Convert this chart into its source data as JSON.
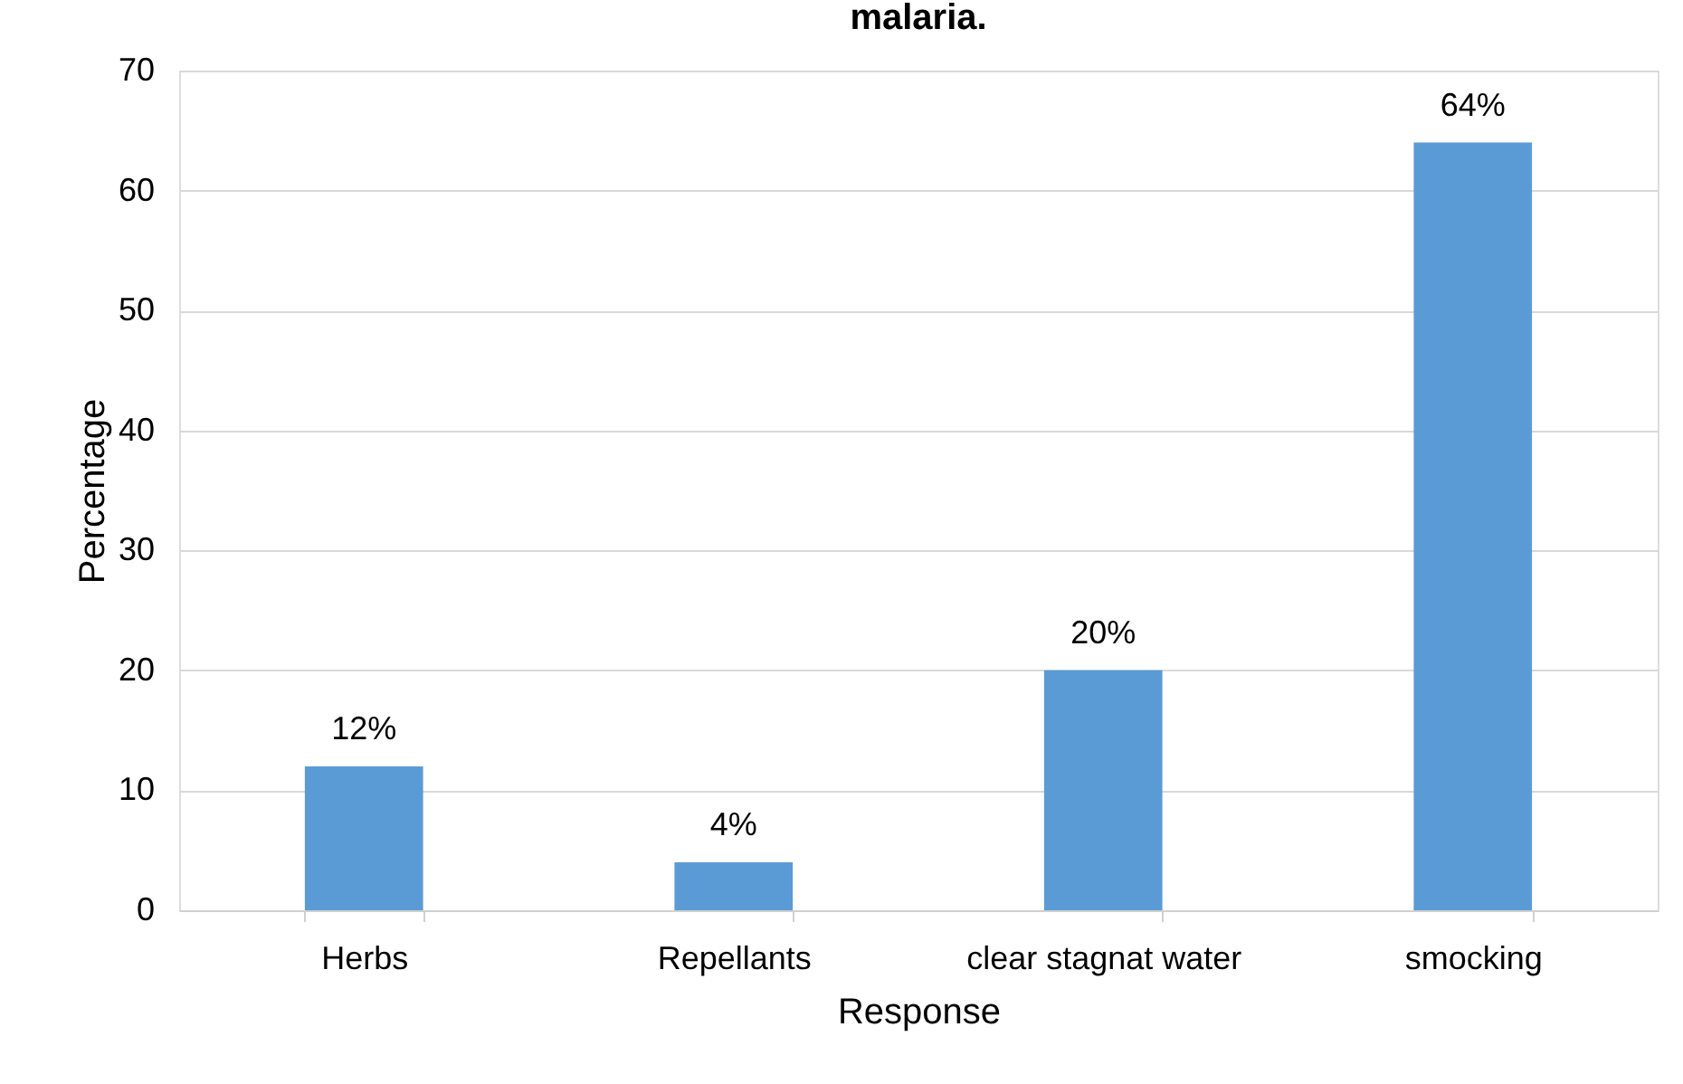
{
  "chart_data": {
    "type": "bar",
    "title": "malaria.",
    "xlabel": "Response",
    "ylabel": "Percentage",
    "categories": [
      "Herbs",
      "Repellants",
      "clear stagnat water",
      "smocking"
    ],
    "values": [
      12,
      4,
      20,
      64
    ],
    "value_labels": [
      "12%",
      "4%",
      "20%",
      "64%"
    ],
    "color": "#5b9bd5",
    "ylim": [
      0,
      70
    ],
    "yticks": [
      0,
      10,
      20,
      30,
      40,
      50,
      60,
      70
    ],
    "grid": "y"
  }
}
